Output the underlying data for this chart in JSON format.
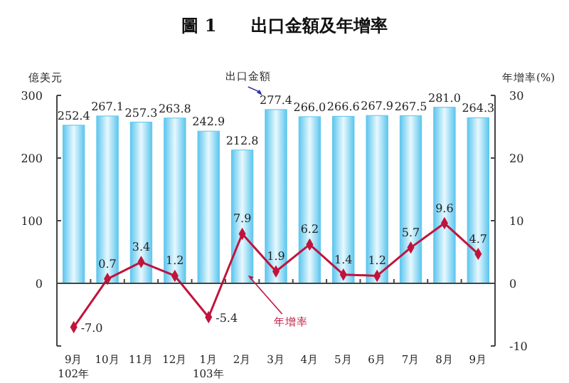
{
  "chart_data": {
    "type": "bar",
    "title": "圖 1　　出口金額及年增率",
    "ylabel": "億美元",
    "y2label": "年增率(%)",
    "categories": [
      "9月\n102年",
      "10月",
      "11月",
      "12月",
      "1月\n103年",
      "2月",
      "3月",
      "4月",
      "5月",
      "6月",
      "7月",
      "8月",
      "9月"
    ],
    "series": [
      {
        "name": "出口金額",
        "color": "#5cc6ee",
        "values": [
          252.4,
          267.1,
          257.3,
          263.8,
          242.9,
          212.8,
          277.4,
          266.0,
          266.6,
          267.9,
          267.5,
          281.0,
          264.3
        ],
        "value_labels": [
          "252.4",
          "267.1",
          "257.3",
          "263.8",
          "242.9",
          "212.8",
          "277.4",
          "266.0",
          "266.6",
          "267.9",
          "267.5",
          "281.0",
          "264.3"
        ]
      },
      {
        "name": "年增率",
        "type": "line",
        "axis": "y2",
        "color": "#c0143c",
        "marker": "diamond",
        "values": [
          -7.0,
          0.7,
          3.4,
          1.2,
          -5.4,
          7.9,
          1.9,
          6.2,
          1.4,
          1.2,
          5.7,
          9.6,
          4.7
        ],
        "value_labels": [
          "-7.0",
          "0.7",
          "3.4",
          "1.2",
          "-5.4",
          "7.9",
          "1.9",
          "6.2",
          "1.4",
          "1.2",
          "5.7",
          "9.6",
          "4.7"
        ]
      }
    ],
    "ylim": [
      -100,
      300
    ],
    "yticks": [
      {
        "value": -100,
        "label": null
      },
      0,
      100,
      200,
      300
    ],
    "y2lim": [
      -10,
      30
    ],
    "y2ticks": [
      -10,
      0,
      10,
      20,
      30
    ]
  }
}
